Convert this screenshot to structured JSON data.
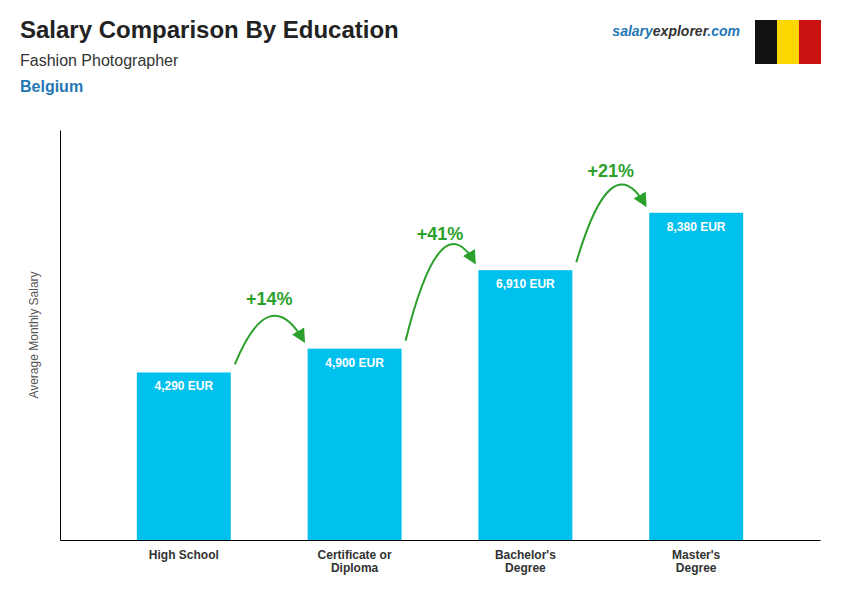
{
  "chart_data": {
    "type": "bar",
    "title": "Salary Comparison By Education",
    "subtitle": "Fashion Photographer",
    "country": "Belgium",
    "brand": [
      "salary",
      "explorer",
      ".com"
    ],
    "categories": [
      "High School",
      "Certificate or\nDiploma",
      "Bachelor's\nDegree",
      "Master's\nDegree"
    ],
    "values": [
      4290,
      4900,
      6910,
      8380
    ],
    "value_labels": [
      "4,290 EUR",
      "4,900 EUR",
      "6,910 EUR",
      "8,380 EUR"
    ],
    "data_labels": true,
    "annotations": [
      "+14%",
      "+41%",
      "+21%"
    ],
    "color": "#00c0ee",
    "ylabel": "Average Monthly Salary",
    "ylim": [
      0,
      10500
    ],
    "yticks": [],
    "tick_labels": "x",
    "grid": false,
    "flag_colors": [
      "#111111",
      "#FFD700",
      "#CC1111"
    ]
  }
}
